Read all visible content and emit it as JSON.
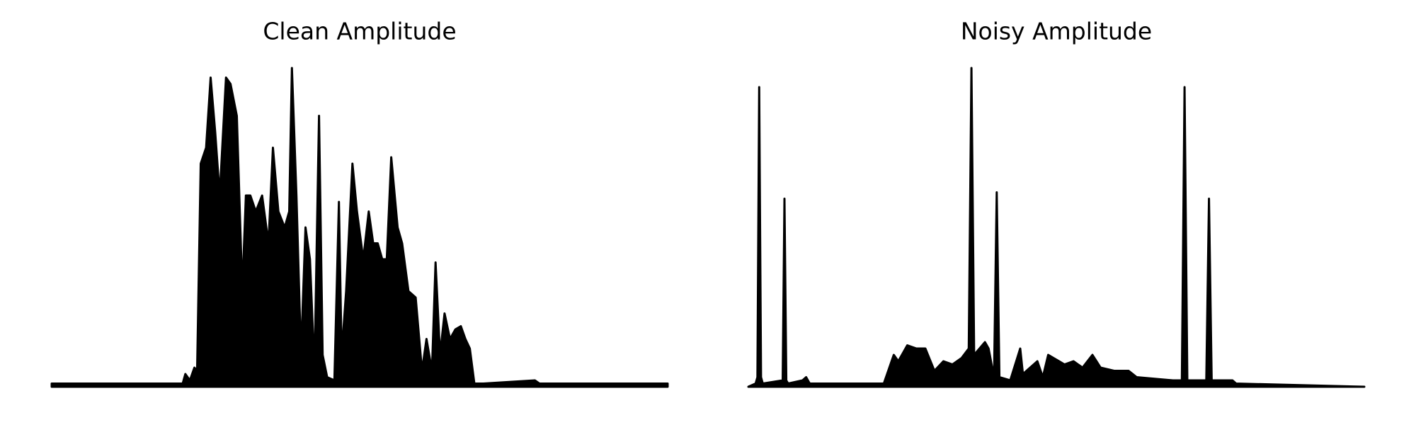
{
  "chart_data": [
    {
      "type": "area",
      "title": "Clean Amplitude",
      "color": "#000000",
      "xlim": [
        0,
        682
      ],
      "ylim": [
        0,
        1
      ],
      "x": [
        0,
        145,
        148,
        153,
        158,
        161,
        165,
        171,
        176,
        181,
        186,
        193,
        198,
        205,
        211,
        215,
        220,
        226,
        233,
        240,
        245,
        251,
        258,
        263,
        266,
        271,
        276,
        281,
        286,
        291,
        296,
        300,
        305,
        313,
        318,
        321,
        326,
        333,
        338,
        345,
        351,
        356,
        361,
        366,
        371,
        376,
        383,
        388,
        395,
        403,
        410,
        415,
        421,
        425,
        430,
        435,
        441,
        447,
        453,
        458,
        463,
        468,
        473,
        478,
        535,
        540,
        682
      ],
      "values": [
        0.01,
        0.01,
        0.04,
        0.02,
        0.06,
        0.05,
        0.7,
        0.75,
        0.97,
        0.8,
        0.6,
        0.97,
        0.95,
        0.85,
        0.3,
        0.6,
        0.6,
        0.55,
        0.6,
        0.45,
        0.75,
        0.55,
        0.5,
        0.55,
        1.0,
        0.6,
        0.1,
        0.5,
        0.4,
        0.05,
        0.85,
        0.1,
        0.03,
        0.02,
        0.58,
        0.1,
        0.3,
        0.7,
        0.55,
        0.4,
        0.55,
        0.45,
        0.45,
        0.4,
        0.4,
        0.72,
        0.5,
        0.45,
        0.3,
        0.28,
        0.05,
        0.15,
        0.05,
        0.39,
        0.1,
        0.23,
        0.15,
        0.18,
        0.19,
        0.15,
        0.12,
        0.01,
        0.01,
        0.01,
        0.02,
        0.01,
        0.01
      ]
    },
    {
      "type": "area",
      "title": "Noisy Amplitude",
      "color": "#000000",
      "xlim": [
        0,
        682
      ],
      "ylim": [
        0,
        1
      ],
      "x": [
        0,
        8,
        10,
        12,
        14,
        16,
        38,
        40,
        42,
        44,
        60,
        64,
        68,
        150,
        161,
        166,
        176,
        186,
        196,
        206,
        216,
        226,
        236,
        244,
        247,
        250,
        262,
        266,
        272,
        275,
        278,
        290,
        301,
        304,
        320,
        326,
        332,
        350,
        360,
        370,
        381,
        390,
        405,
        421,
        430,
        470,
        480,
        483,
        486,
        500,
        507,
        510,
        513,
        530,
        536,
        540,
        682
      ],
      "values": [
        0.0,
        0.01,
        0.03,
        0.94,
        0.03,
        0.01,
        0.02,
        0.59,
        0.02,
        0.01,
        0.02,
        0.03,
        0.01,
        0.01,
        0.1,
        0.08,
        0.13,
        0.12,
        0.12,
        0.05,
        0.08,
        0.07,
        0.09,
        0.12,
        1.0,
        0.1,
        0.14,
        0.12,
        0.03,
        0.61,
        0.03,
        0.02,
        0.12,
        0.04,
        0.08,
        0.03,
        0.1,
        0.07,
        0.08,
        0.06,
        0.1,
        0.06,
        0.05,
        0.05,
        0.03,
        0.02,
        0.02,
        0.94,
        0.02,
        0.02,
        0.02,
        0.59,
        0.02,
        0.02,
        0.02,
        0.01,
        0.0
      ]
    }
  ]
}
